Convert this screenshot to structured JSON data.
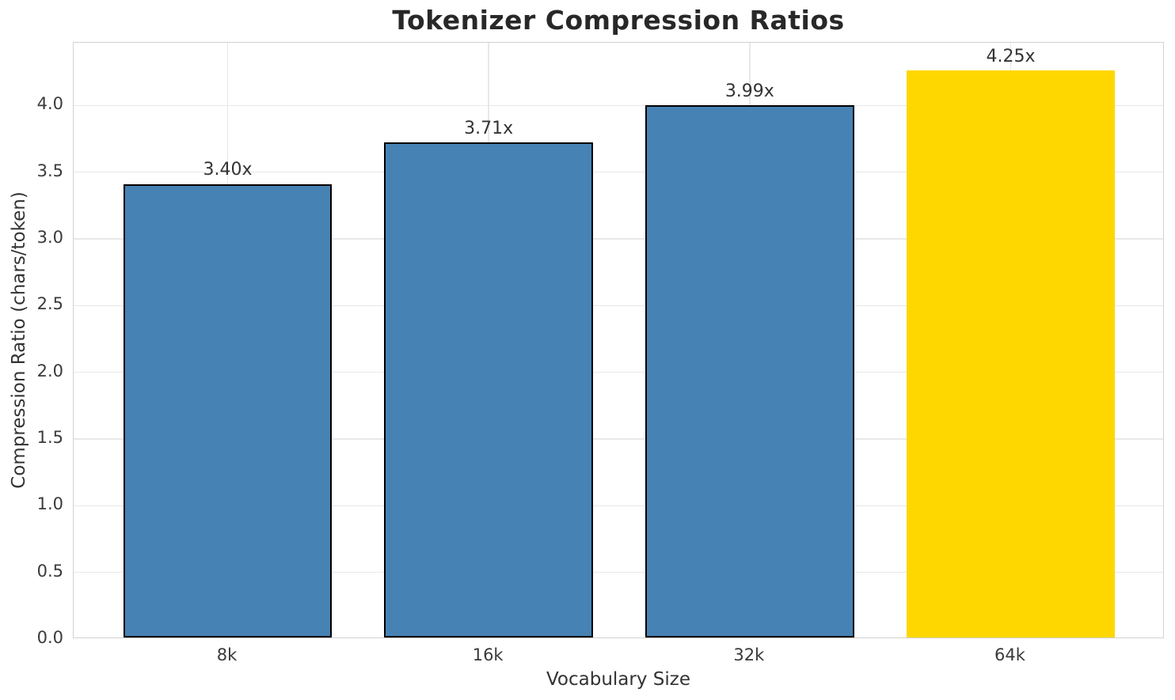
{
  "chart_data": {
    "type": "bar",
    "title": "Tokenizer Compression Ratios",
    "xlabel": "Vocabulary Size",
    "ylabel": "Compression Ratio (chars/token)",
    "categories": [
      "8k",
      "16k",
      "32k",
      "64k"
    ],
    "values": [
      3.4,
      3.71,
      3.99,
      4.25
    ],
    "bar_labels": [
      "3.40x",
      "3.71x",
      "3.99x",
      "4.25x"
    ],
    "bar_colors": [
      "#4682B4",
      "#4682B4",
      "#4682B4",
      "#FFD700"
    ],
    "bar_edge_colors": [
      "#000000",
      "#000000",
      "#000000",
      "none"
    ],
    "highlighted_category": "64k",
    "yticks": [
      0.0,
      0.5,
      1.0,
      1.5,
      2.0,
      2.5,
      3.0,
      3.5,
      4.0
    ],
    "ytick_labels": [
      "0.0",
      "0.5",
      "1.0",
      "1.5",
      "2.0",
      "2.5",
      "3.0",
      "3.5",
      "4.0"
    ],
    "ylim": [
      0,
      4.47
    ],
    "grid": true,
    "legend": null,
    "colors": {
      "grid": "#e8e8e8",
      "spine": "#d2d2d2",
      "title_text": "#282828",
      "tick_text": "#3a3a3a"
    }
  }
}
